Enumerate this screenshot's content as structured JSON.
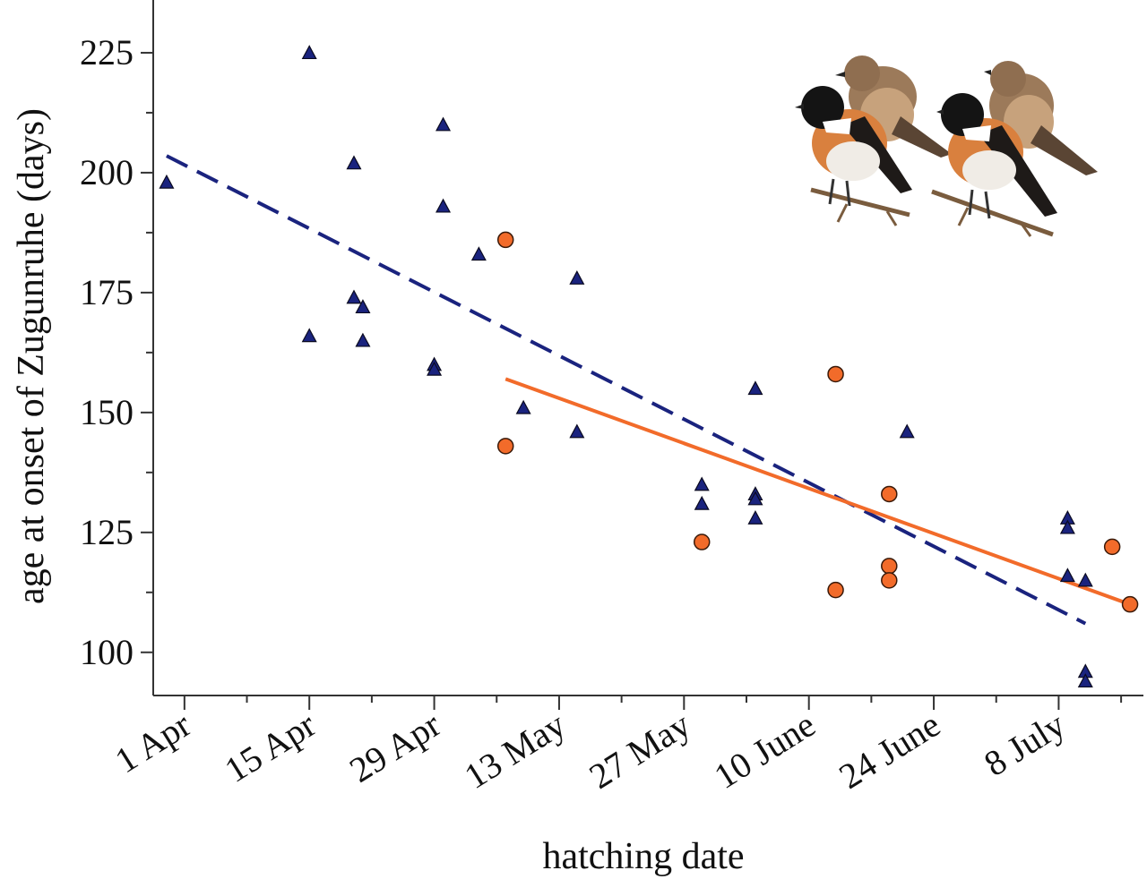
{
  "chart_data": {
    "type": "scatter",
    "title": "",
    "xlabel": "hatching date",
    "ylabel": "age at onset of Zugunruhe (days)",
    "x_unit": "day of year",
    "xlim": [
      87.5,
      198.5
    ],
    "ylim": [
      91,
      236
    ],
    "grid": false,
    "legend": "none",
    "x_ticks": [
      {
        "value": 91,
        "label": "1 Apr"
      },
      {
        "value": 105,
        "label": "15 Apr"
      },
      {
        "value": 119,
        "label": "29 Apr"
      },
      {
        "value": 133,
        "label": "13 May"
      },
      {
        "value": 147,
        "label": "27 May"
      },
      {
        "value": 161,
        "label": "10 June"
      },
      {
        "value": 175,
        "label": "24 June"
      },
      {
        "value": 189,
        "label": "8 July"
      }
    ],
    "x_minor_ticks": [
      98,
      112,
      126,
      140,
      154,
      168,
      182,
      196
    ],
    "y_ticks": [
      100,
      125,
      150,
      175,
      200,
      225
    ],
    "y_minor_ticks": [
      112.5,
      137.5,
      162.5,
      187.5,
      212.5
    ],
    "series": [
      {
        "marker": "triangle",
        "color": "#1a237e",
        "points": [
          [
            89,
            198
          ],
          [
            105,
            225
          ],
          [
            105,
            166
          ],
          [
            110,
            202
          ],
          [
            110,
            174
          ],
          [
            111,
            172
          ],
          [
            111,
            165
          ],
          [
            119,
            160
          ],
          [
            119,
            159
          ],
          [
            120,
            210
          ],
          [
            120,
            193
          ],
          [
            124,
            183
          ],
          [
            129,
            151
          ],
          [
            135,
            178
          ],
          [
            135,
            146
          ],
          [
            149,
            135
          ],
          [
            149,
            131
          ],
          [
            155,
            155
          ],
          [
            155,
            133
          ],
          [
            155,
            132
          ],
          [
            155,
            128
          ],
          [
            172,
            146
          ],
          [
            190,
            128
          ],
          [
            190,
            126
          ],
          [
            190,
            116
          ],
          [
            192,
            115
          ],
          [
            192,
            96
          ],
          [
            192,
            94
          ]
        ],
        "trend": {
          "style": "dashed",
          "color": "#1a237e",
          "x": [
            89,
            192
          ],
          "y": [
            203.5,
            106
          ]
        }
      },
      {
        "marker": "circle",
        "color": "#f26b2a",
        "points": [
          [
            127,
            186
          ],
          [
            127,
            143
          ],
          [
            149,
            123
          ],
          [
            164,
            158
          ],
          [
            164,
            113
          ],
          [
            170,
            133
          ],
          [
            170,
            118
          ],
          [
            170,
            115
          ],
          [
            195,
            122
          ],
          [
            197,
            110
          ]
        ],
        "trend": {
          "style": "solid",
          "color": "#f26b2a",
          "x": [
            127,
            197
          ],
          "y": [
            157,
            110
          ]
        }
      }
    ],
    "decoration": "illustration of stonechat birds (two pairs) in upper right"
  }
}
